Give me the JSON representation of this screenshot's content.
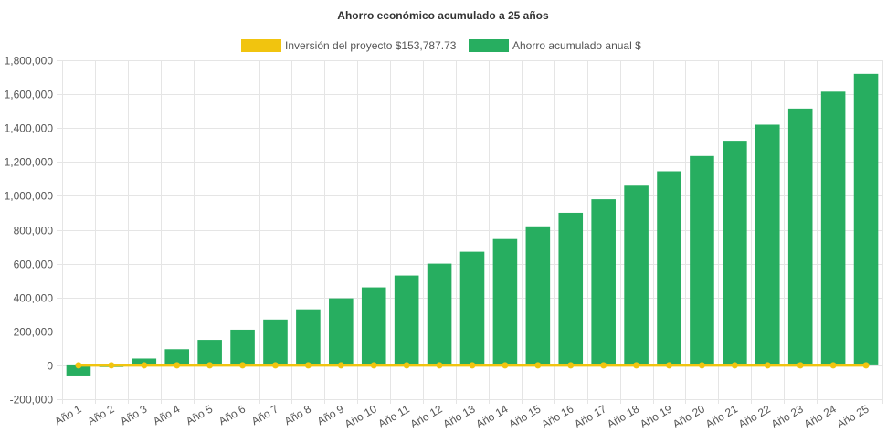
{
  "chart_data": {
    "type": "bar",
    "title": "Ahorro económico acumulado a 25 años",
    "legend_position": "top",
    "grid": true,
    "ylim": [
      -200000,
      1800000
    ],
    "yticks": [
      "-200,000",
      "0",
      "200,000",
      "400,000",
      "600,000",
      "800,000",
      "1,000,000",
      "1,200,000",
      "1,400,000",
      "1,600,000",
      "1,800,000"
    ],
    "ytick_values": [
      -200000,
      0,
      200000,
      400000,
      600000,
      800000,
      1000000,
      1200000,
      1400000,
      1600000,
      1800000
    ],
    "categories": [
      "Año 1",
      "Año 2",
      "Año 3",
      "Año 4",
      "Año 5",
      "Año 6",
      "Año 7",
      "Año 8",
      "Año 9",
      "Año 10",
      "Año 11",
      "Año 12",
      "Año 13",
      "Año 14",
      "Año 15",
      "Año 16",
      "Año 17",
      "Año 18",
      "Año 19",
      "Año 20",
      "Año 21",
      "Año 22",
      "Año 23",
      "Año 24",
      "Año 25"
    ],
    "series": [
      {
        "name": "Inversión del proyecto $153,787.73",
        "type": "line",
        "color": "#f1c40f",
        "values": [
          0,
          0,
          0,
          0,
          0,
          0,
          0,
          0,
          0,
          0,
          0,
          0,
          0,
          0,
          0,
          0,
          0,
          0,
          0,
          0,
          0,
          0,
          0,
          0,
          0
        ]
      },
      {
        "name": "Ahorro acumulado anual $",
        "type": "bar",
        "color": "#27ae60",
        "values": [
          -65000,
          -10000,
          40000,
          95000,
          150000,
          210000,
          270000,
          330000,
          395000,
          460000,
          530000,
          600000,
          670000,
          745000,
          820000,
          900000,
          980000,
          1060000,
          1145000,
          1235000,
          1325000,
          1420000,
          1515000,
          1615000,
          1720000
        ]
      }
    ]
  }
}
